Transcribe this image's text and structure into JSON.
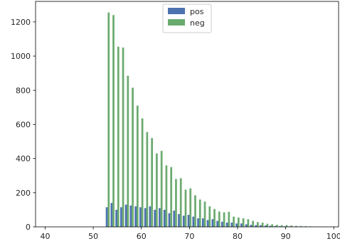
{
  "chart_data": {
    "type": "bar",
    "title": "",
    "xlabel": "",
    "ylabel": "",
    "xlim": [
      38,
      101
    ],
    "ylim": [
      0,
      1320
    ],
    "grid": false,
    "legend_placement": "top-center",
    "x_ticks": [
      {
        "value": 40,
        "label": "40"
      },
      {
        "value": 50,
        "label": "50"
      },
      {
        "value": 60,
        "label": "60"
      },
      {
        "value": 70,
        "label": "70"
      },
      {
        "value": 80,
        "label": "80"
      },
      {
        "value": 90,
        "label": "90"
      },
      {
        "value": 100,
        "label": "100"
      }
    ],
    "y_ticks": [
      {
        "value": 0,
        "label": "0"
      },
      {
        "value": 200,
        "label": "200"
      },
      {
        "value": 400,
        "label": "400"
      },
      {
        "value": 600,
        "label": "600"
      },
      {
        "value": 800,
        "label": "800"
      },
      {
        "value": 1000,
        "label": "1000"
      },
      {
        "value": 1200,
        "label": "1200"
      }
    ],
    "x": [
      53,
      54,
      55,
      56,
      57,
      58,
      59,
      60,
      61,
      62,
      63,
      64,
      65,
      66,
      67,
      68,
      69,
      70,
      71,
      72,
      73,
      74,
      75,
      76,
      77,
      78,
      79,
      80,
      81,
      82,
      83,
      84,
      85,
      86,
      87,
      88,
      89,
      90,
      91,
      92,
      93,
      94,
      95,
      96,
      97,
      98,
      99,
      100
    ],
    "series": [
      {
        "name": "pos",
        "color": "#4c72b0",
        "values": [
          115,
          140,
          100,
          115,
          130,
          125,
          120,
          115,
          110,
          120,
          100,
          110,
          100,
          80,
          95,
          75,
          65,
          70,
          60,
          50,
          50,
          40,
          45,
          35,
          30,
          25,
          25,
          20,
          20,
          15,
          12,
          10,
          10,
          8,
          6,
          5,
          4,
          3,
          3,
          2,
          2,
          2,
          1,
          1,
          1,
          1,
          0,
          0
        ]
      },
      {
        "name": "neg",
        "color": "#6aaa6e",
        "values": [
          1255,
          1240,
          1055,
          1050,
          885,
          815,
          710,
          635,
          555,
          520,
          430,
          445,
          360,
          350,
          280,
          285,
          218,
          225,
          185,
          160,
          148,
          120,
          105,
          90,
          85,
          88,
          60,
          55,
          50,
          45,
          35,
          28,
          25,
          18,
          15,
          12,
          10,
          10,
          8,
          6,
          5,
          4,
          3,
          2,
          2,
          1,
          1,
          1
        ]
      }
    ]
  }
}
